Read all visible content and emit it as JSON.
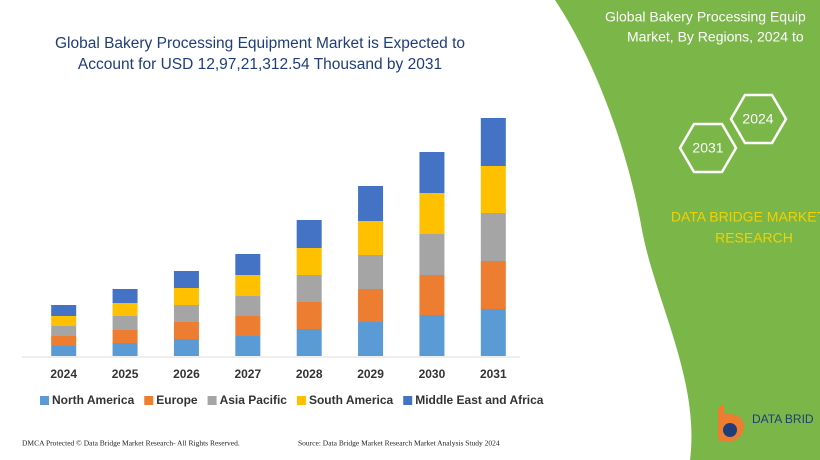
{
  "chart_data": {
    "type": "bar",
    "stacked": true,
    "title": "Global Bakery Processing Equipment Market is Expected to Account for USD 12,97,21,312.54 Thousand by 2031",
    "categories": [
      "2024",
      "2025",
      "2026",
      "2027",
      "2028",
      "2029",
      "2030",
      "2031"
    ],
    "series": [
      {
        "name": "North America",
        "color": "#5b9bd5",
        "values": [
          10,
          13,
          17,
          20,
          27,
          34,
          41,
          47
        ]
      },
      {
        "name": "Europe",
        "color": "#ed7d31",
        "values": [
          10,
          13,
          17,
          20,
          27,
          33,
          40,
          48
        ]
      },
      {
        "name": "Asia Pacific",
        "color": "#a5a5a5",
        "values": [
          10,
          14,
          17,
          20,
          27,
          34,
          41,
          48
        ]
      },
      {
        "name": "South America",
        "color": "#ffc000",
        "values": [
          10,
          13,
          17,
          21,
          27,
          34,
          41,
          47
        ]
      },
      {
        "name": "Middle East and Africa",
        "color": "#4472c4",
        "values": [
          11,
          14,
          17,
          21,
          28,
          35,
          41,
          48
        ]
      }
    ],
    "ylim": [
      0,
      250
    ],
    "grid": false
  },
  "panel": {
    "title_lines": [
      "Global Bakery Processing Equip",
      "Market, By Regions, 2024 to"
    ],
    "hex_labels": [
      "2031",
      "2024"
    ],
    "brand_lines": [
      "DATA BRIDGE MARKET",
      "RESEARCH"
    ]
  },
  "logo": {
    "name": "DATA BRID"
  },
  "footer": {
    "left": "DMCA Protected © Data Bridge Market Research- All Rights Reserved.",
    "right": "Source: Data Bridge Market Research  Market Analysis Study 2024"
  }
}
